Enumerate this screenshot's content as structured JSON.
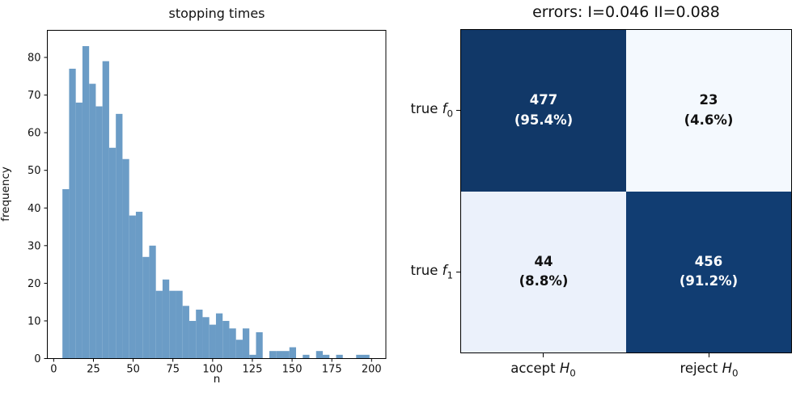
{
  "page": {
    "background": "#ffffff"
  },
  "left_chart": {
    "title": "stopping times",
    "xlabel": "n",
    "ylabel": "frequency"
  },
  "right_chart": {
    "title": "errors: I=0.046 II=0.088",
    "rows": [
      {
        "prefix": "true ",
        "var": "f",
        "sub": "0"
      },
      {
        "prefix": "true ",
        "var": "f",
        "sub": "1"
      }
    ],
    "cols": [
      {
        "prefix": "accept ",
        "var": "H",
        "sub": "0"
      },
      {
        "prefix": "reject ",
        "var": "H",
        "sub": "0"
      }
    ],
    "cells": [
      {
        "value": "477",
        "pct": "(95.4%)",
        "bg": "#113868",
        "fg": "#ffffff"
      },
      {
        "value": "23",
        "pct": "(4.6%)",
        "bg": "#f4f9fe",
        "fg": "#111111"
      },
      {
        "value": "44",
        "pct": "(8.8%)",
        "bg": "#ebf1fb",
        "fg": "#111111"
      },
      {
        "value": "456",
        "pct": "(91.2%)",
        "bg": "#113d72",
        "fg": "#ffffff"
      }
    ]
  },
  "chart_data": [
    {
      "type": "bar",
      "title": "stopping times",
      "xlabel": "n",
      "ylabel": "frequency",
      "bin_start": 5.5,
      "bin_width": 4.2,
      "counts": [
        45,
        77,
        68,
        83,
        73,
        67,
        79,
        56,
        65,
        53,
        38,
        39,
        27,
        30,
        18,
        21,
        18,
        18,
        14,
        10,
        13,
        11,
        9,
        12,
        10,
        8,
        5,
        8,
        1,
        7,
        0,
        2,
        2,
        2,
        3,
        0,
        1,
        0,
        2,
        1,
        0,
        1,
        0,
        0,
        1,
        1
      ],
      "xticks": [
        0,
        25,
        50,
        75,
        100,
        125,
        150,
        175,
        200
      ],
      "yticks": [
        0,
        10,
        20,
        30,
        40,
        50,
        60,
        70,
        80
      ],
      "xlim": [
        -4,
        209
      ],
      "ylim": [
        0,
        87.2
      ],
      "bar_color": "#6b9cc6",
      "grid": false,
      "legend": null
    },
    {
      "type": "heatmap",
      "title": "errors: I=0.046 II=0.088",
      "row_labels": [
        "true f0",
        "true f1"
      ],
      "col_labels": [
        "accept H0",
        "reject H0"
      ],
      "values": [
        [
          477,
          23
        ],
        [
          44,
          456
        ]
      ],
      "percentages": [
        [
          "95.4%",
          "4.6%"
        ],
        [
          "8.8%",
          "91.2%"
        ]
      ],
      "error_type_I": 0.046,
      "error_type_II": 0.088,
      "cell_colors": [
        [
          "#113868",
          "#f4f9fe"
        ],
        [
          "#ebf1fb",
          "#113d72"
        ]
      ],
      "text_colors": [
        [
          "#ffffff",
          "#111111"
        ],
        [
          "#111111",
          "#ffffff"
        ]
      ],
      "legend_position": "none"
    }
  ]
}
